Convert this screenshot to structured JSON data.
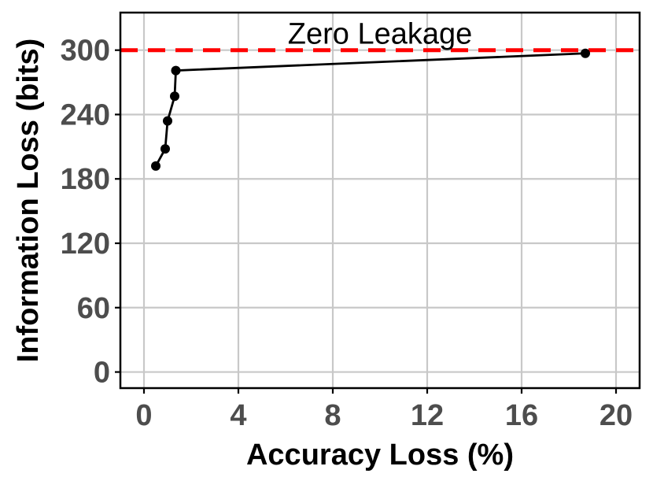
{
  "chart_data": {
    "type": "line",
    "xlabel": "Accuracy Loss (%)",
    "ylabel": "Information Loss (bits)",
    "xlim": [
      -1,
      21
    ],
    "ylim": [
      -15,
      335
    ],
    "x_ticks": [
      0,
      4,
      8,
      12,
      16,
      20
    ],
    "y_ticks": [
      0,
      60,
      120,
      180,
      240,
      300
    ],
    "x_tick_labels": [
      "0",
      "4",
      "8",
      "12",
      "16",
      "20"
    ],
    "y_tick_labels": [
      "0",
      "60",
      "120",
      "180",
      "240",
      "300"
    ],
    "grid": true,
    "legend": "none",
    "series": [
      {
        "color": "#000000",
        "markers": true,
        "points": [
          {
            "x": 0.5,
            "y": 192
          },
          {
            "x": 0.9,
            "y": 208
          },
          {
            "x": 1.0,
            "y": 234
          },
          {
            "x": 1.3,
            "y": 257
          },
          {
            "x": 1.35,
            "y": 281
          },
          {
            "x": 18.7,
            "y": 297
          }
        ]
      }
    ],
    "reference_line": {
      "y": 300,
      "color": "#ff0000",
      "style": "dashed",
      "label": "Zero Leakage"
    }
  }
}
